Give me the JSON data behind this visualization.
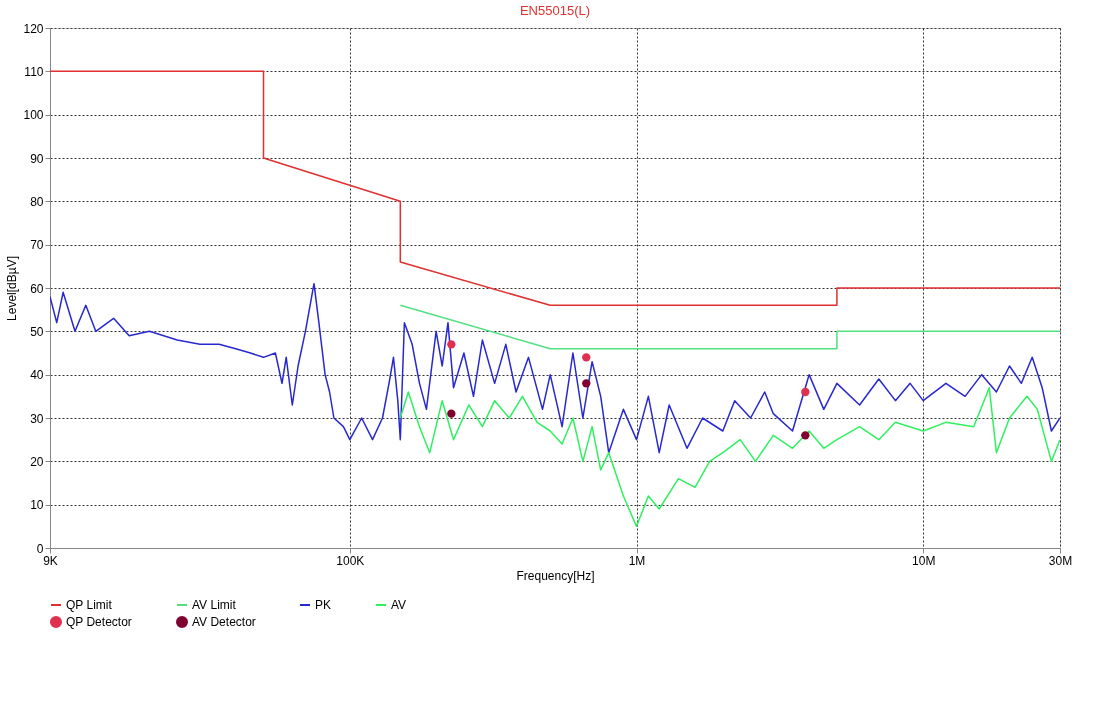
{
  "chart_data": {
    "type": "line",
    "title": "EN55015(L)",
    "xlabel": "Frequency[Hz]",
    "ylabel": "Level[dBµV]",
    "log": "x",
    "xlim": [
      9000,
      30000000
    ],
    "xticks": [
      {
        "value": 9000,
        "label": "9K"
      },
      {
        "value": 100000,
        "label": "100K"
      },
      {
        "value": 1000000,
        "label": "1M"
      },
      {
        "value": 10000000,
        "label": "10M"
      },
      {
        "value": 30000000,
        "label": "30M"
      }
    ],
    "ylim": [
      0,
      120
    ],
    "yticks": [
      0,
      10,
      20,
      30,
      40,
      50,
      60,
      70,
      80,
      90,
      100,
      110,
      120
    ],
    "grid": true,
    "legend": "bottom",
    "line_style": "solid",
    "series": [
      {
        "name": "QP Limit",
        "color": "#e03030",
        "x": [
          9000,
          50000,
          50000,
          150000,
          150000,
          500000,
          5000000,
          5000000,
          30000000
        ],
        "values": [
          110,
          110,
          90,
          80,
          66,
          56,
          56,
          60,
          60
        ]
      },
      {
        "name": "AV Limit",
        "color": "#50e080",
        "x": [
          150000,
          500000,
          5000000,
          5000000,
          30000000
        ],
        "values": [
          56,
          46,
          46,
          50,
          50
        ]
      },
      {
        "name": "PK",
        "color": "#2828d0",
        "x": [
          9000,
          9500,
          10000,
          11000,
          12000,
          13000,
          15000,
          17000,
          20000,
          25000,
          30000,
          35000,
          40000,
          45000,
          50000,
          55000,
          58000,
          60000,
          63000,
          66000,
          70000,
          75000,
          78000,
          82000,
          85000,
          88000,
          95000,
          100000,
          110000,
          120000,
          130000,
          137000,
          142000,
          147000,
          150000,
          155000,
          165000,
          175000,
          185000,
          200000,
          210000,
          220000,
          230000,
          250000,
          270000,
          290000,
          320000,
          350000,
          380000,
          420000,
          470000,
          500000,
          550000,
          600000,
          650000,
          700000,
          750000,
          800000,
          900000,
          1000000,
          1100000,
          1200000,
          1300000,
          1500000,
          1700000,
          2000000,
          2200000,
          2500000,
          2800000,
          3000000,
          3500000,
          4000000,
          4500000,
          5000000,
          6000000,
          7000000,
          8000000,
          9000000,
          10000000,
          12000000,
          14000000,
          16000000,
          18000000,
          20000000,
          22000000,
          24000000,
          26000000,
          28000000,
          30000000
        ],
        "values": [
          58,
          52,
          59,
          50,
          56,
          50,
          53,
          49,
          50,
          48,
          47,
          47,
          46,
          45,
          44,
          45,
          38,
          44,
          33,
          42,
          50,
          61,
          52,
          40,
          36,
          30,
          28,
          25,
          30,
          25,
          30,
          38,
          44,
          34,
          25,
          52,
          47,
          38,
          32,
          50,
          42,
          52,
          37,
          45,
          35,
          48,
          38,
          47,
          36,
          44,
          32,
          40,
          28,
          45,
          30,
          43,
          35,
          22,
          32,
          25,
          35,
          22,
          33,
          23,
          30,
          27,
          34,
          30,
          36,
          31,
          27,
          40,
          32,
          38,
          33,
          39,
          34,
          38,
          34,
          38,
          35,
          40,
          36,
          42,
          38,
          44,
          37,
          27,
          30
        ]
      },
      {
        "name": "AV",
        "color": "#30f060",
        "x": [
          150000,
          160000,
          175000,
          190000,
          210000,
          230000,
          260000,
          290000,
          320000,
          360000,
          400000,
          450000,
          500000,
          550000,
          600000,
          650000,
          700000,
          750000,
          800000,
          900000,
          1000000,
          1100000,
          1200000,
          1400000,
          1600000,
          1800000,
          2000000,
          2300000,
          2600000,
          3000000,
          3500000,
          4000000,
          4500000,
          5000000,
          6000000,
          7000000,
          8000000,
          10000000,
          12000000,
          15000000,
          17000000,
          18000000,
          20000000,
          23000000,
          25000000,
          28000000,
          30000000
        ],
        "values": [
          30,
          36,
          28,
          22,
          34,
          25,
          33,
          28,
          34,
          30,
          35,
          29,
          27,
          24,
          30,
          20,
          28,
          18,
          22,
          12,
          5,
          12,
          9,
          16,
          14,
          20,
          22,
          25,
          20,
          26,
          23,
          27,
          23,
          25,
          28,
          25,
          29,
          27,
          29,
          28,
          37,
          22,
          30,
          35,
          32,
          20,
          25
        ]
      },
      {
        "name": "QP Detector",
        "color": "#e03050",
        "type": "scatter",
        "marker": "circle",
        "x": [
          226000,
          668000,
          3880000
        ],
        "values": [
          47,
          44,
          36
        ]
      },
      {
        "name": "AV Detector",
        "color": "#800030",
        "type": "scatter",
        "marker": "circle",
        "x": [
          226000,
          668000,
          3880000
        ],
        "values": [
          31,
          38,
          26
        ]
      }
    ]
  }
}
